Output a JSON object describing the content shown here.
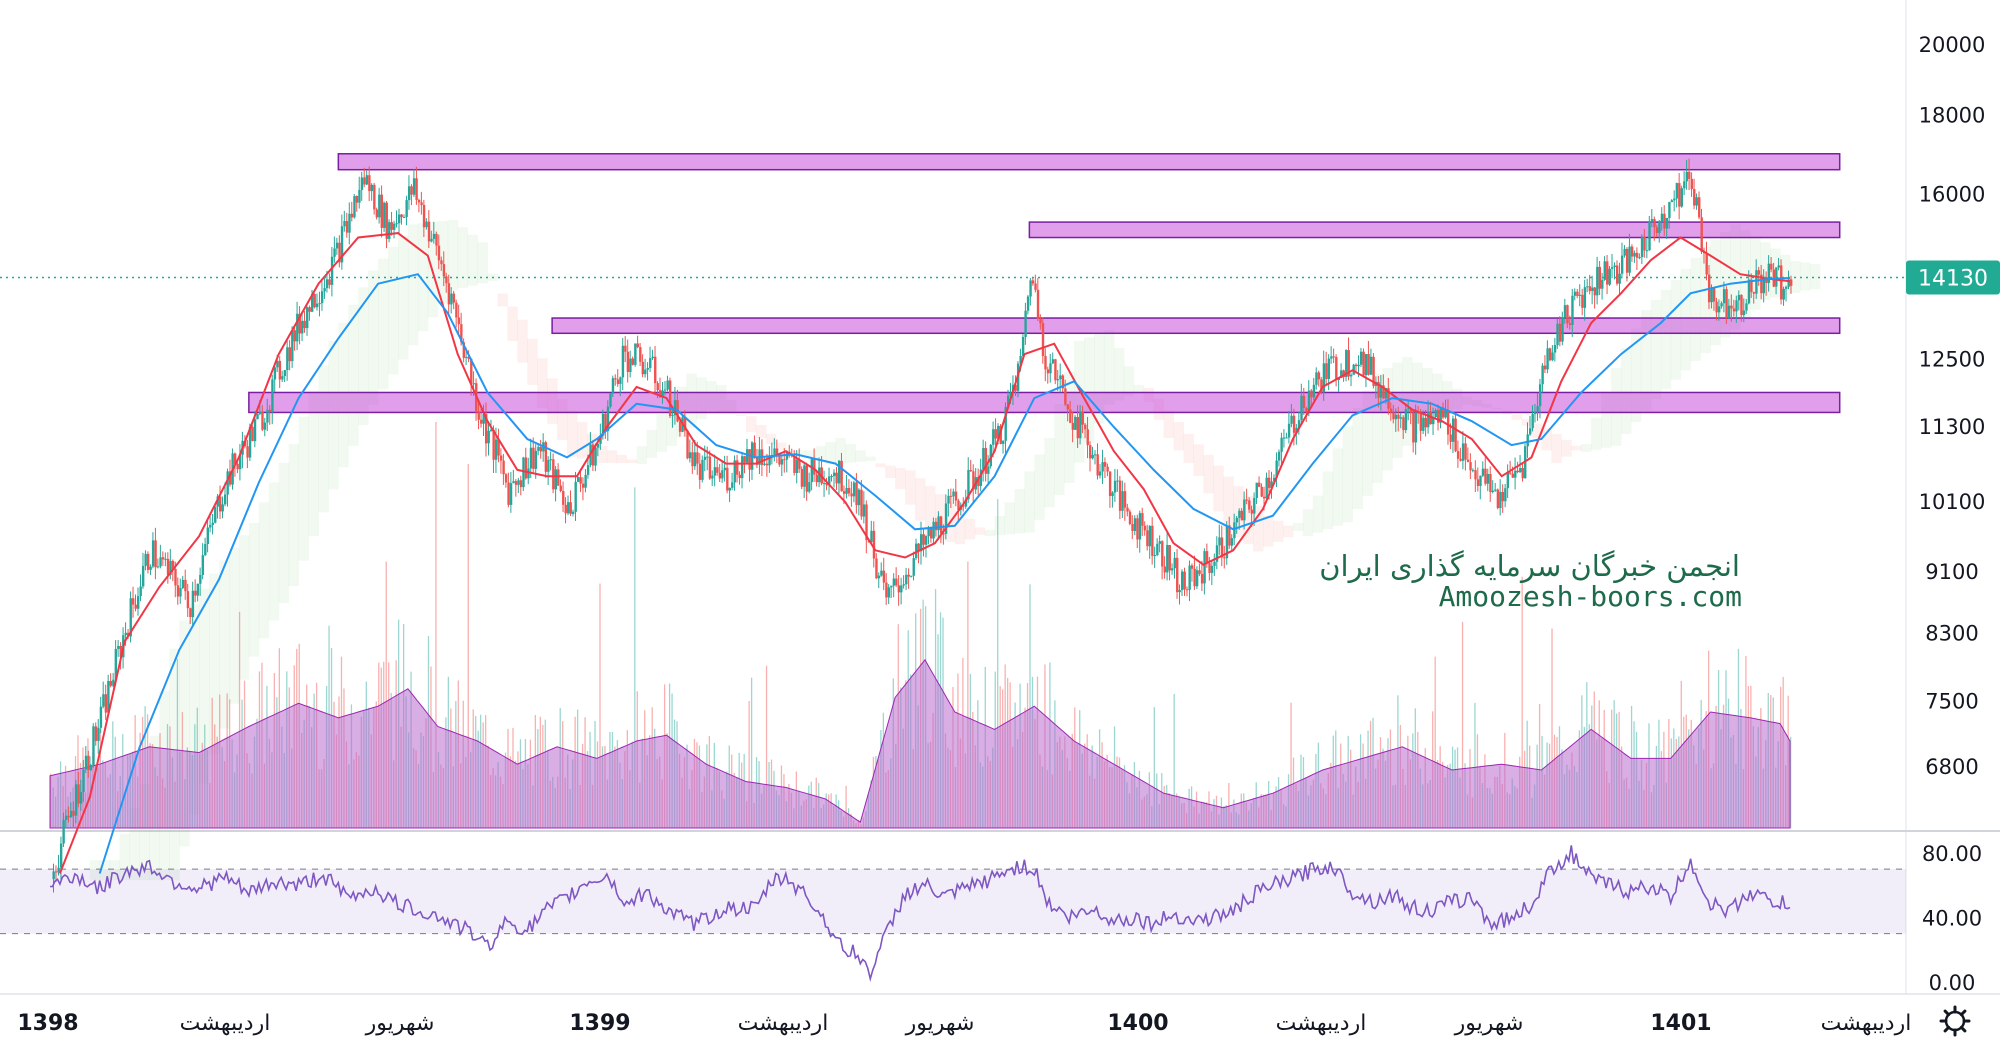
{
  "watermark": {
    "line1": "انجمن خبرگان سرمایه گذاری ایران",
    "line2": "Amoozesh-boors.com"
  },
  "current_price": {
    "value": 14130,
    "label": "14130",
    "color": "#22ab94"
  },
  "settings_icon": "gear-icon",
  "colors": {
    "up": "#26a69a",
    "down": "#ef5350",
    "ma_fast": "#f23645",
    "ma_slow": "#2196f3",
    "zones": "#c94fd8",
    "rsi": "#7e57c2",
    "volume_avg": "#b86bd0"
  },
  "chart_data": [
    {
      "type": "candlestick",
      "title": "",
      "y_scale": "log",
      "ylim": [
        5700,
        21500
      ],
      "y_ticks": [
        20000,
        18000,
        16000,
        12500,
        11300,
        10100,
        9100,
        8300,
        7500,
        6800
      ],
      "y_tick_labels": [
        "20000",
        "18000",
        "16000",
        "12500",
        "11300",
        "10100",
        "9100",
        "8300",
        "7500",
        "6800"
      ],
      "x_ticks": [
        {
          "label": "1398",
          "bold": true
        },
        {
          "label": "اردیبهشت",
          "bold": false
        },
        {
          "label": "شهریور",
          "bold": false
        },
        {
          "label": "1399",
          "bold": true
        },
        {
          "label": "اردیبهشت",
          "bold": false
        },
        {
          "label": "شهریور",
          "bold": false
        },
        {
          "label": "1400",
          "bold": true
        },
        {
          "label": "اردیبهشت",
          "bold": false
        },
        {
          "label": "شهریور",
          "bold": false
        },
        {
          "label": "1401",
          "bold": true
        },
        {
          "label": "اردیبهشت",
          "bold": false
        }
      ],
      "close_path": [
        [
          0,
          5750
        ],
        [
          10,
          7300
        ],
        [
          20,
          9400
        ],
        [
          28,
          8700
        ],
        [
          35,
          10400
        ],
        [
          42,
          11400
        ],
        [
          50,
          13200
        ],
        [
          57,
          14500
        ],
        [
          63,
          16400
        ],
        [
          68,
          15200
        ],
        [
          73,
          16100
        ],
        [
          80,
          13900
        ],
        [
          86,
          11600
        ],
        [
          92,
          10300
        ],
        [
          98,
          10950
        ],
        [
          104,
          10000
        ],
        [
          110,
          11000
        ],
        [
          115,
          12600
        ],
        [
          120,
          12400
        ],
        [
          125,
          11700
        ],
        [
          130,
          10600
        ],
        [
          136,
          10500
        ],
        [
          141,
          10900
        ],
        [
          146,
          10800
        ],
        [
          152,
          10500
        ],
        [
          157,
          10600
        ],
        [
          162,
          10300
        ],
        [
          168,
          8700
        ],
        [
          174,
          9300
        ],
        [
          180,
          9900
        ],
        [
          186,
          10500
        ],
        [
          191,
          11200
        ],
        [
          195,
          12400
        ],
        [
          197,
          14300
        ],
        [
          200,
          12600
        ],
        [
          205,
          11600
        ],
        [
          210,
          10800
        ],
        [
          216,
          10000
        ],
        [
          222,
          9500
        ],
        [
          228,
          8900
        ],
        [
          234,
          9300
        ],
        [
          240,
          9900
        ],
        [
          246,
          10600
        ],
        [
          252,
          11800
        ],
        [
          257,
          12300
        ],
        [
          263,
          12600
        ],
        [
          268,
          11900
        ],
        [
          274,
          11300
        ],
        [
          280,
          11500
        ],
        [
          286,
          10600
        ],
        [
          291,
          10150
        ],
        [
          296,
          10700
        ],
        [
          301,
          12600
        ],
        [
          306,
          13600
        ],
        [
          312,
          14200
        ],
        [
          318,
          14500
        ],
        [
          324,
          15500
        ],
        [
          330,
          16400
        ],
        [
          334,
          13600
        ],
        [
          340,
          13700
        ],
        [
          345,
          14200
        ],
        [
          350,
          13900
        ]
      ],
      "ma_fast": [
        [
          2,
          5800
        ],
        [
          8,
          6500
        ],
        [
          15,
          8200
        ],
        [
          22,
          8900
        ],
        [
          30,
          9600
        ],
        [
          38,
          10800
        ],
        [
          46,
          12600
        ],
        [
          54,
          14000
        ],
        [
          62,
          15000
        ],
        [
          70,
          15100
        ],
        [
          76,
          14600
        ],
        [
          82,
          12600
        ],
        [
          88,
          11400
        ],
        [
          94,
          10600
        ],
        [
          100,
          10500
        ],
        [
          106,
          10500
        ],
        [
          112,
          11300
        ],
        [
          118,
          12000
        ],
        [
          124,
          11800
        ],
        [
          130,
          11000
        ],
        [
          136,
          10700
        ],
        [
          142,
          10700
        ],
        [
          148,
          10900
        ],
        [
          154,
          10600
        ],
        [
          160,
          10100
        ],
        [
          166,
          9400
        ],
        [
          172,
          9300
        ],
        [
          178,
          9500
        ],
        [
          184,
          10100
        ],
        [
          190,
          10900
        ],
        [
          196,
          12600
        ],
        [
          202,
          12800
        ],
        [
          208,
          11800
        ],
        [
          214,
          10900
        ],
        [
          220,
          10300
        ],
        [
          226,
          9500
        ],
        [
          232,
          9200
        ],
        [
          238,
          9400
        ],
        [
          244,
          10000
        ],
        [
          250,
          11100
        ],
        [
          256,
          12000
        ],
        [
          262,
          12300
        ],
        [
          268,
          12000
        ],
        [
          274,
          11600
        ],
        [
          280,
          11400
        ],
        [
          286,
          11100
        ],
        [
          292,
          10500
        ],
        [
          298,
          10800
        ],
        [
          304,
          12100
        ],
        [
          310,
          13200
        ],
        [
          316,
          13800
        ],
        [
          322,
          14500
        ],
        [
          328,
          15000
        ],
        [
          334,
          14600
        ],
        [
          340,
          14200
        ],
        [
          346,
          14100
        ],
        [
          350,
          14050
        ]
      ],
      "ma_slow": [
        [
          10,
          5800
        ],
        [
          18,
          7000
        ],
        [
          26,
          8100
        ],
        [
          34,
          9000
        ],
        [
          42,
          10400
        ],
        [
          50,
          11800
        ],
        [
          58,
          12900
        ],
        [
          66,
          14000
        ],
        [
          74,
          14200
        ],
        [
          80,
          13400
        ],
        [
          88,
          11900
        ],
        [
          96,
          11100
        ],
        [
          104,
          10800
        ],
        [
          110,
          11100
        ],
        [
          118,
          11700
        ],
        [
          126,
          11600
        ],
        [
          134,
          11000
        ],
        [
          142,
          10800
        ],
        [
          150,
          10850
        ],
        [
          158,
          10700
        ],
        [
          166,
          10200
        ],
        [
          174,
          9700
        ],
        [
          182,
          9750
        ],
        [
          190,
          10500
        ],
        [
          198,
          11800
        ],
        [
          206,
          12100
        ],
        [
          214,
          11300
        ],
        [
          222,
          10600
        ],
        [
          230,
          10000
        ],
        [
          238,
          9700
        ],
        [
          246,
          9900
        ],
        [
          254,
          10700
        ],
        [
          262,
          11500
        ],
        [
          270,
          11800
        ],
        [
          278,
          11700
        ],
        [
          286,
          11400
        ],
        [
          294,
          11000
        ],
        [
          300,
          11100
        ],
        [
          308,
          11900
        ],
        [
          316,
          12600
        ],
        [
          324,
          13200
        ],
        [
          330,
          13800
        ],
        [
          338,
          14000
        ],
        [
          346,
          14100
        ],
        [
          350,
          14120
        ]
      ],
      "zones": [
        {
          "from": 58,
          "to": 360,
          "low": 16600,
          "high": 17000
        },
        {
          "from": 197,
          "to": 360,
          "low": 15000,
          "high": 15350
        },
        {
          "from": 101,
          "to": 360,
          "low": 13000,
          "high": 13300
        },
        {
          "from": 40,
          "to": 360,
          "low": 11550,
          "high": 11900
        }
      ],
      "volume_average": [
        [
          0,
          0.18
        ],
        [
          10,
          0.22
        ],
        [
          20,
          0.28
        ],
        [
          30,
          0.26
        ],
        [
          40,
          0.35
        ],
        [
          50,
          0.43
        ],
        [
          58,
          0.38
        ],
        [
          66,
          0.42
        ],
        [
          72,
          0.48
        ],
        [
          78,
          0.35
        ],
        [
          86,
          0.3
        ],
        [
          94,
          0.22
        ],
        [
          102,
          0.28
        ],
        [
          110,
          0.24
        ],
        [
          118,
          0.3
        ],
        [
          124,
          0.32
        ],
        [
          132,
          0.22
        ],
        [
          140,
          0.16
        ],
        [
          148,
          0.14
        ],
        [
          156,
          0.1
        ],
        [
          163,
          0.02
        ],
        [
          170,
          0.45
        ],
        [
          176,
          0.58
        ],
        [
          182,
          0.4
        ],
        [
          190,
          0.34
        ],
        [
          198,
          0.42
        ],
        [
          206,
          0.3
        ],
        [
          214,
          0.22
        ],
        [
          224,
          0.12
        ],
        [
          236,
          0.07
        ],
        [
          246,
          0.12
        ],
        [
          256,
          0.2
        ],
        [
          264,
          0.24
        ],
        [
          272,
          0.28
        ],
        [
          282,
          0.2
        ],
        [
          292,
          0.22
        ],
        [
          300,
          0.2
        ],
        [
          310,
          0.34
        ],
        [
          318,
          0.24
        ],
        [
          326,
          0.24
        ],
        [
          334,
          0.4
        ],
        [
          342,
          0.38
        ],
        [
          348,
          0.36
        ],
        [
          350,
          0.3
        ]
      ]
    },
    {
      "type": "line",
      "title": "",
      "ylim": [
        0,
        100
      ],
      "y_ticks": [
        80,
        40,
        0
      ],
      "y_tick_labels": [
        "80.00",
        "40.00",
        "0.00"
      ],
      "bands": [
        30,
        70
      ],
      "series": [
        {
          "values": [
            [
              0,
              60
            ],
            [
              5,
              66
            ],
            [
              10,
              58
            ],
            [
              15,
              68
            ],
            [
              20,
              72
            ],
            [
              25,
              62
            ],
            [
              30,
              58
            ],
            [
              35,
              65
            ],
            [
              40,
              55
            ],
            [
              45,
              62
            ],
            [
              50,
              60
            ],
            [
              55,
              66
            ],
            [
              60,
              52
            ],
            [
              65,
              58
            ],
            [
              70,
              48
            ],
            [
              75,
              44
            ],
            [
              80,
              38
            ],
            [
              85,
              30
            ],
            [
              88,
              22
            ],
            [
              92,
              38
            ],
            [
              96,
              32
            ],
            [
              100,
              45
            ],
            [
              104,
              52
            ],
            [
              108,
              62
            ],
            [
              112,
              66
            ],
            [
              116,
              48
            ],
            [
              120,
              56
            ],
            [
              125,
              42
            ],
            [
              130,
              36
            ],
            [
              136,
              46
            ],
            [
              142,
              45
            ],
            [
              145,
              62
            ],
            [
              148,
              65
            ],
            [
              152,
              54
            ],
            [
              156,
              38
            ],
            [
              159,
              22
            ],
            [
              162,
              18
            ],
            [
              165,
              6
            ],
            [
              168,
              28
            ],
            [
              172,
              55
            ],
            [
              176,
              60
            ],
            [
              180,
              52
            ],
            [
              184,
              58
            ],
            [
              188,
              62
            ],
            [
              192,
              68
            ],
            [
              195,
              72
            ],
            [
              198,
              70
            ],
            [
              201,
              48
            ],
            [
              205,
              40
            ],
            [
              210,
              45
            ],
            [
              214,
              38
            ],
            [
              218,
              40
            ],
            [
              222,
              36
            ],
            [
              226,
              42
            ],
            [
              230,
              38
            ],
            [
              234,
              40
            ],
            [
              238,
              44
            ],
            [
              242,
              54
            ],
            [
              246,
              60
            ],
            [
              250,
              64
            ],
            [
              254,
              70
            ],
            [
              258,
              72
            ],
            [
              262,
              56
            ],
            [
              266,
              50
            ],
            [
              270,
              54
            ],
            [
              274,
              46
            ],
            [
              278,
              44
            ],
            [
              282,
              50
            ],
            [
              286,
              52
            ],
            [
              290,
              36
            ],
            [
              294,
              40
            ],
            [
              298,
              48
            ],
            [
              302,
              70
            ],
            [
              306,
              80
            ],
            [
              310,
              64
            ],
            [
              314,
              60
            ],
            [
              318,
              56
            ],
            [
              322,
              60
            ],
            [
              326,
              52
            ],
            [
              330,
              75
            ],
            [
              334,
              48
            ],
            [
              338,
              44
            ],
            [
              342,
              56
            ],
            [
              346,
              50
            ],
            [
              350,
              48
            ]
          ]
        }
      ]
    }
  ]
}
